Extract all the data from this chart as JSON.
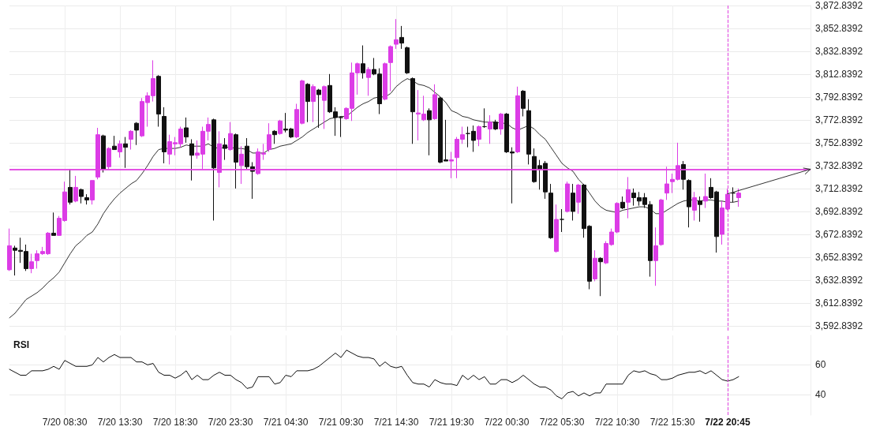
{
  "chart_data": [
    {
      "type": "candlestick",
      "categories": [
        null,
        null,
        null,
        null,
        null,
        null,
        null,
        null,
        null,
        null,
        "7/20 08:30",
        null,
        null,
        null,
        null,
        null,
        null,
        null,
        null,
        null,
        "7/20 13:30",
        null,
        null,
        null,
        null,
        null,
        null,
        null,
        null,
        null,
        "7/20 18:30",
        null,
        null,
        null,
        null,
        null,
        null,
        null,
        null,
        null,
        "7/20 23:30",
        null,
        null,
        null,
        null,
        null,
        null,
        null,
        null,
        null,
        "7/21 04:30",
        null,
        null,
        null,
        null,
        null,
        null,
        null,
        null,
        null,
        "7/21 09:30",
        null,
        null,
        null,
        null,
        null,
        null,
        null,
        null,
        null,
        "7/21 14:30",
        null,
        null,
        null,
        null,
        null,
        null,
        null,
        null,
        null,
        "7/21 19:30",
        null,
        null,
        null,
        null,
        null,
        null,
        null,
        null,
        null,
        "7/22 00:30",
        null,
        null,
        null,
        null,
        null,
        null,
        null,
        null,
        null,
        "7/22 05:30",
        null,
        null,
        null,
        null,
        null,
        null,
        null,
        null,
        null,
        "7/22 10:30",
        null,
        null,
        null,
        null,
        null,
        null,
        null,
        null,
        null,
        "7/22 15:30",
        null,
        null,
        null,
        null,
        null,
        null,
        null,
        null,
        null,
        "7/22 20:45",
        null,
        null,
        null,
        null,
        null,
        null,
        null,
        null,
        null,
        null,
        null,
        null,
        null,
        null,
        null
      ],
      "ohlc": [
        [
          3642,
          3678,
          3641,
          3663
        ],
        [
          3661,
          3663,
          3637,
          3659
        ],
        [
          3659,
          3670,
          3648,
          3658
        ],
        [
          3658,
          3664,
          3641,
          3643
        ],
        [
          3643,
          3656,
          3639,
          3649
        ],
        [
          3650,
          3659,
          3643,
          3656
        ],
        [
          3656,
          3662,
          3655,
          3658
        ],
        [
          3656,
          3675,
          3655,
          3674
        ],
        [
          3674,
          3692,
          3672,
          3672
        ],
        [
          3672,
          3689,
          3672,
          3687
        ],
        [
          3685,
          3719,
          3684,
          3710
        ],
        [
          3714,
          3730,
          3699,
          3701
        ],
        [
          3702,
          3724,
          3701,
          3714
        ],
        [
          3712,
          3713,
          3700,
          3706
        ],
        [
          3705,
          3708,
          3699,
          3703
        ],
        [
          3703,
          3720,
          3699,
          3720
        ],
        [
          3723,
          3766,
          3721,
          3760
        ],
        [
          3759,
          3760,
          3727,
          3730
        ],
        [
          3732,
          3749,
          3730,
          3748
        ],
        [
          3750,
          3759,
          3747,
          3747
        ],
        [
          3745,
          3755,
          3740,
          3752
        ],
        [
          3752,
          3758,
          3731,
          3749
        ],
        [
          3756,
          3764,
          3747,
          3763
        ],
        [
          3770,
          3771,
          3751,
          3764
        ],
        [
          3759,
          3792,
          3758,
          3789
        ],
        [
          3788,
          3797,
          3767,
          3794
        ],
        [
          3794,
          3825,
          3789,
          3809
        ],
        [
          3811,
          3812,
          3767,
          3778
        ],
        [
          3776,
          3784,
          3735,
          3745
        ],
        [
          3743,
          3760,
          3734,
          3754
        ],
        [
          3752,
          3758,
          3742,
          3753
        ],
        [
          3752,
          3767,
          3749,
          3765
        ],
        [
          3766,
          3775,
          3753,
          3758
        ],
        [
          3752,
          3756,
          3720,
          3742
        ],
        [
          3742,
          3755,
          3739,
          3744
        ],
        [
          3743,
          3767,
          3730,
          3763
        ],
        [
          3763,
          3775,
          3755,
          3769
        ],
        [
          3773,
          3774,
          3685,
          3731
        ],
        [
          3727,
          3763,
          3714,
          3752
        ],
        [
          3751,
          3757,
          3738,
          3748
        ],
        [
          3747,
          3771,
          3746,
          3761
        ],
        [
          3760,
          3761,
          3713,
          3736
        ],
        [
          3733,
          3750,
          3717,
          3743
        ],
        [
          3750,
          3757,
          3730,
          3732
        ],
        [
          3732,
          3736,
          3704,
          3728
        ],
        [
          3726,
          3748,
          3725,
          3745
        ],
        [
          3743,
          3752,
          3738,
          3744
        ],
        [
          3747,
          3770,
          3745,
          3760
        ],
        [
          3763,
          3764,
          3752,
          3760
        ],
        [
          3761,
          3773,
          3760,
          3772
        ],
        [
          3765,
          3779,
          3762,
          3764
        ],
        [
          3765,
          3766,
          3757,
          3758
        ],
        [
          3758,
          3787,
          3757,
          3782
        ],
        [
          3770,
          3808,
          3769,
          3807
        ],
        [
          3804,
          3805,
          3771,
          3789
        ],
        [
          3789,
          3804,
          3771,
          3802
        ],
        [
          3799,
          3800,
          3766,
          3795
        ],
        [
          3790,
          3803,
          3765,
          3802
        ],
        [
          3803,
          3813,
          3779,
          3780
        ],
        [
          3780,
          3784,
          3759,
          3775
        ],
        [
          3775,
          3776,
          3758,
          3775
        ],
        [
          3774,
          3784,
          3773,
          3783
        ],
        [
          3783,
          3823,
          3772,
          3814
        ],
        [
          3814,
          3823,
          3795,
          3822
        ],
        [
          3822,
          3838,
          3809,
          3814
        ],
        [
          3810,
          3819,
          3794,
          3817
        ],
        [
          3817,
          3827,
          3812,
          3813
        ],
        [
          3813,
          3818,
          3778,
          3787
        ],
        [
          3791,
          3823,
          3790,
          3822
        ],
        [
          3823,
          3838,
          3798,
          3837
        ],
        [
          3839,
          3861,
          3835,
          3843
        ],
        [
          3845,
          3855,
          3835,
          3840
        ],
        [
          3836,
          3837,
          3813,
          3814
        ],
        [
          3809,
          3810,
          3752,
          3780
        ],
        [
          3778,
          3799,
          3755,
          3779
        ],
        [
          3773,
          3794,
          3772,
          3778
        ],
        [
          3781,
          3783,
          3742,
          3773
        ],
        [
          3774,
          3804,
          3773,
          3795
        ],
        [
          3792,
          3793,
          3735,
          3736
        ],
        [
          3738,
          3773,
          3737,
          3737
        ],
        [
          3737,
          3745,
          3722,
          3738
        ],
        [
          3740,
          3758,
          3722,
          3756
        ],
        [
          3756,
          3767,
          3752,
          3760
        ],
        [
          3761,
          3767,
          3749,
          3761
        ],
        [
          3763,
          3768,
          3745,
          3755
        ],
        [
          3756,
          3768,
          3750,
          3767
        ],
        [
          3767,
          3783,
          3766,
          3767
        ],
        [
          3765,
          3777,
          3752,
          3771
        ],
        [
          3771,
          3773,
          3764,
          3765
        ],
        [
          3765,
          3779,
          3760,
          3778
        ],
        [
          3778,
          3779,
          3744,
          3745
        ],
        [
          3745,
          3749,
          3700,
          3744
        ],
        [
          3745,
          3802,
          3744,
          3794
        ],
        [
          3798,
          3799,
          3776,
          3783
        ],
        [
          3781,
          3791,
          3734,
          3743
        ],
        [
          3741,
          3748,
          3718,
          3719
        ],
        [
          3733,
          3738,
          3712,
          3730
        ],
        [
          3735,
          3737,
          3704,
          3710
        ],
        [
          3709,
          3717,
          3669,
          3670
        ],
        [
          3658,
          3699,
          3657,
          3686
        ],
        [
          3686,
          3695,
          3675,
          3686
        ],
        [
          3693,
          3719,
          3692,
          3717
        ],
        [
          3709,
          3717,
          3685,
          3693
        ],
        [
          3701,
          3717,
          3691,
          3716
        ],
        [
          3716,
          3717,
          3670,
          3678
        ],
        [
          3680,
          3681,
          3625,
          3632
        ],
        [
          3634,
          3659,
          3632,
          3652
        ],
        [
          3652,
          3653,
          3619,
          3649
        ],
        [
          3648,
          3667,
          3647,
          3665
        ],
        [
          3664,
          3678,
          3663,
          3675
        ],
        [
          3675,
          3701,
          3674,
          3700
        ],
        [
          3701,
          3706,
          3695,
          3696
        ],
        [
          3701,
          3723,
          3687,
          3712
        ],
        [
          3709,
          3713,
          3698,
          3705
        ],
        [
          3705,
          3710,
          3698,
          3702
        ],
        [
          3705,
          3709,
          3696,
          3699
        ],
        [
          3699,
          3702,
          3636,
          3650
        ],
        [
          3650,
          3679,
          3628,
          3663
        ],
        [
          3664,
          3704,
          3663,
          3703
        ],
        [
          3709,
          3732,
          3703,
          3717
        ],
        [
          3719,
          3726,
          3709,
          3721
        ],
        [
          3721,
          3753,
          3720,
          3733
        ],
        [
          3734,
          3737,
          3712,
          3721
        ],
        [
          3720,
          3721,
          3679,
          3697
        ],
        [
          3694,
          3710,
          3685,
          3705
        ],
        [
          3702,
          3706,
          3684,
          3699
        ],
        [
          3702,
          3726,
          3696,
          3706
        ],
        [
          3714,
          3722,
          3704,
          3705
        ],
        [
          3710,
          3711,
          3657,
          3671
        ],
        [
          3673,
          3702,
          3664,
          3696
        ],
        [
          3695,
          3713,
          3694,
          3708
        ],
        [
          3709,
          3714,
          3701,
          3709
        ],
        [
          3705,
          3713,
          3697,
          3709
        ],
        null,
        null,
        null,
        null,
        null,
        null,
        null,
        null,
        null,
        null,
        null,
        null,
        null
      ],
      "colors": [
        "#dc3ce6",
        "#111111",
        "#111111",
        "#111111",
        "#dc3ce6",
        "#dc3ce6",
        "#dc3ce6",
        "#dc3ce6",
        "#111111",
        "#dc3ce6",
        "#dc3ce6",
        "#111111",
        "#dc3ce6",
        "#111111",
        "#111111",
        "#dc3ce6",
        "#dc3ce6",
        "#111111",
        "#dc3ce6",
        "#111111",
        "#dc3ce6",
        "#111111",
        "#dc3ce6",
        "#111111",
        "#dc3ce6",
        "#dc3ce6",
        "#dc3ce6",
        "#111111",
        "#111111",
        "#dc3ce6",
        "#dc3ce6",
        "#dc3ce6",
        "#111111",
        "#111111",
        "#dc3ce6",
        "#dc3ce6",
        "#dc3ce6",
        "#111111",
        "#dc3ce6",
        "#111111",
        "#dc3ce6",
        "#111111",
        "#dc3ce6",
        "#111111",
        "#111111",
        "#dc3ce6",
        "#dc3ce6",
        "#dc3ce6",
        "#111111",
        "#dc3ce6",
        "#111111",
        "#111111",
        "#dc3ce6",
        "#dc3ce6",
        "#111111",
        "#dc3ce6",
        "#111111",
        "#dc3ce6",
        "#111111",
        "#111111",
        "#111111",
        "#dc3ce6",
        "#dc3ce6",
        "#dc3ce6",
        "#111111",
        "#dc3ce6",
        "#111111",
        "#111111",
        "#dc3ce6",
        "#dc3ce6",
        "#dc3ce6",
        "#111111",
        "#111111",
        "#111111",
        "#dc3ce6",
        "#dc3ce6",
        "#111111",
        "#dc3ce6",
        "#111111",
        "#111111",
        "#dc3ce6",
        "#dc3ce6",
        "#dc3ce6",
        "#111111",
        "#111111",
        "#dc3ce6",
        "#111111",
        "#dc3ce6",
        "#111111",
        "#dc3ce6",
        "#111111",
        "#111111",
        "#dc3ce6",
        "#111111",
        "#111111",
        "#111111",
        "#111111",
        "#111111",
        "#111111",
        "#dc3ce6",
        "#111111",
        "#dc3ce6",
        "#111111",
        "#dc3ce6",
        "#111111",
        "#111111",
        "#dc3ce6",
        "#111111",
        "#dc3ce6",
        "#dc3ce6",
        "#dc3ce6",
        "#111111",
        "#dc3ce6",
        "#111111",
        "#111111",
        "#111111",
        "#111111",
        "#dc3ce6",
        "#dc3ce6",
        "#dc3ce6",
        "#dc3ce6",
        "#dc3ce6",
        "#111111",
        "#111111",
        "#dc3ce6",
        "#111111",
        "#dc3ce6",
        "#111111",
        "#111111",
        "#dc3ce6",
        "#dc3ce6",
        "#111111",
        "#dc3ce6",
        null,
        null,
        null,
        null,
        null,
        null,
        null,
        null,
        null,
        null,
        null,
        null,
        null
      ],
      "series": [
        {
          "type": "line",
          "color": "#333333",
          "values": [
            3600,
            3604,
            3610,
            3616,
            3619,
            3622,
            3626,
            3631,
            3635,
            3640,
            3648,
            3656,
            3663,
            3667,
            3672,
            3675,
            3682,
            3691,
            3698,
            3704,
            3709,
            3713,
            3717,
            3720,
            3726,
            3733,
            3741,
            3747,
            3748,
            3748,
            3748,
            3749,
            3751,
            3750,
            3750,
            3750,
            3752,
            3749,
            3748,
            3749,
            3749,
            3748,
            3748,
            3747,
            3744,
            3744,
            3744,
            3747,
            3748,
            3750,
            3751,
            3752,
            3755,
            3758,
            3762,
            3765,
            3768,
            3771,
            3774,
            3775,
            3776,
            3776,
            3780,
            3784,
            3787,
            3789,
            3792,
            3793,
            3793,
            3796,
            3802,
            3806,
            3809,
            3807,
            3804,
            3803,
            3801,
            3797,
            3793,
            3788,
            3781,
            3779,
            3776,
            3775,
            3773,
            3772,
            3771,
            3771,
            3771,
            3770,
            3770,
            3766,
            3764,
            3766,
            3768,
            3765,
            3760,
            3756,
            3749,
            3742,
            3735,
            3731,
            3728,
            3721,
            3716,
            3709,
            3702,
            3697,
            3694,
            3693,
            3692,
            3694,
            3695,
            3696,
            3697,
            3697,
            3695,
            3691,
            3691,
            3694,
            3697,
            3700,
            3702,
            3703,
            3703,
            3702,
            3703,
            3703,
            3702,
            3702,
            3701,
            3701,
            3702,
            null,
            null,
            null,
            null,
            null,
            null,
            null,
            null,
            null,
            null,
            null,
            null,
            null
          ]
        }
      ],
      "ylim": [
        3588.8392,
        3872.8392
      ],
      "yticks": [
        {
          "value": 3592.8392,
          "label": "3,592.8392"
        },
        {
          "value": 3612.8392,
          "label": "3,612.8392"
        },
        {
          "value": 3632.8392,
          "label": "3,632.8392"
        },
        {
          "value": 3652.8392,
          "label": "3,652.8392"
        },
        {
          "value": 3672.8392,
          "label": "3,672.8392"
        },
        {
          "value": 3692.8392,
          "label": "3,692.8392"
        },
        {
          "value": 3712.8392,
          "label": "3,712.8392"
        },
        {
          "value": 3732.8392,
          "label": "3,732.8392"
        },
        {
          "value": 3752.8392,
          "label": "3,752.8392"
        },
        {
          "value": 3772.8392,
          "label": "3,772.8392"
        },
        {
          "value": 3792.8392,
          "label": "3,792.8392"
        },
        {
          "value": 3812.8392,
          "label": "3,812.8392"
        },
        {
          "value": 3832.8392,
          "label": "3,832.8392"
        },
        {
          "value": 3852.8392,
          "label": "3,852.8392"
        },
        {
          "value": 3872.8392,
          "label": "3,872.8392"
        }
      ],
      "ref_lines": [
        {
          "axis": "y",
          "value": 3729.5,
          "color": "#e040e0"
        },
        {
          "axis": "x",
          "value": "7/22 20:45",
          "color": "#e040e0",
          "line_style": "dashed"
        }
      ],
      "grid": true,
      "tick_labels": "y",
      "marker": "none"
    },
    {
      "type": "line",
      "title": "RSI",
      "categories": [
        null,
        null,
        null,
        null,
        null,
        null,
        null,
        null,
        null,
        null,
        "7/20 08:30",
        null,
        null,
        null,
        null,
        null,
        null,
        null,
        null,
        null,
        "7/20 13:30",
        null,
        null,
        null,
        null,
        null,
        null,
        null,
        null,
        null,
        "7/20 18:30",
        null,
        null,
        null,
        null,
        null,
        null,
        null,
        null,
        null,
        "7/20 23:30",
        null,
        null,
        null,
        null,
        null,
        null,
        null,
        null,
        null,
        "7/21 04:30",
        null,
        null,
        null,
        null,
        null,
        null,
        null,
        null,
        null,
        "7/21 09:30",
        null,
        null,
        null,
        null,
        null,
        null,
        null,
        null,
        null,
        "7/21 14:30",
        null,
        null,
        null,
        null,
        null,
        null,
        null,
        null,
        null,
        "7/21 19:30",
        null,
        null,
        null,
        null,
        null,
        null,
        null,
        null,
        null,
        "7/22 00:30",
        null,
        null,
        null,
        null,
        null,
        null,
        null,
        null,
        null,
        "7/22 05:30",
        null,
        null,
        null,
        null,
        null,
        null,
        null,
        null,
        null,
        "7/22 10:30",
        null,
        null,
        null,
        null,
        null,
        null,
        null,
        null,
        null,
        "7/22 15:30",
        null,
        null,
        null,
        null,
        null,
        null,
        null,
        null,
        null,
        "7/22 20:45",
        null,
        null,
        null,
        null,
        null,
        null,
        null,
        null,
        null,
        null,
        null,
        null,
        null,
        null,
        null
      ],
      "values": [
        57,
        55,
        53,
        53,
        56,
        56,
        56,
        57,
        59,
        57,
        63,
        61,
        59,
        59,
        59,
        60,
        65,
        62,
        65,
        67,
        65,
        65,
        65,
        62,
        62,
        60,
        61,
        55,
        53,
        53,
        51,
        53,
        56,
        50,
        53,
        50,
        50,
        53,
        55,
        53,
        53,
        50,
        48,
        44,
        45,
        52,
        52,
        52,
        47,
        48,
        53,
        52,
        56,
        56,
        56,
        57,
        59,
        62,
        65,
        68,
        65,
        70,
        68,
        66,
        65,
        65,
        64,
        59,
        62,
        59,
        58,
        59,
        53,
        48,
        47,
        47,
        45,
        50,
        48,
        47,
        47,
        46,
        53,
        50,
        53,
        50,
        52,
        47,
        47,
        50,
        50,
        48,
        50,
        53,
        50,
        47,
        45,
        45,
        43,
        39,
        37,
        41,
        42,
        39,
        41,
        39,
        41,
        41,
        47,
        47,
        47,
        47,
        53,
        56,
        55,
        56,
        54,
        53,
        50,
        50,
        51,
        53,
        54,
        55,
        55,
        56,
        54,
        56,
        53,
        50,
        49,
        50,
        52,
        null,
        null,
        null,
        null,
        null,
        null,
        null,
        null,
        null,
        null,
        null,
        null,
        null
      ],
      "color": "#111111",
      "ylim": [
        26,
        80
      ],
      "yticks": [
        40,
        60
      ],
      "ref_lines": [
        {
          "axis": "x",
          "value": "7/22 20:45",
          "color": "#e040e0",
          "line_style": "dashed"
        }
      ],
      "grid": true,
      "marker": "none"
    }
  ]
}
